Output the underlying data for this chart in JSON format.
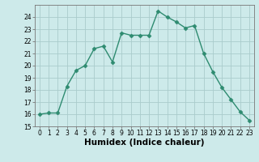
{
  "x": [
    0,
    1,
    2,
    3,
    4,
    5,
    6,
    7,
    8,
    9,
    10,
    11,
    12,
    13,
    14,
    15,
    16,
    17,
    18,
    19,
    20,
    21,
    22,
    23
  ],
  "y": [
    16.0,
    16.1,
    16.1,
    18.3,
    19.6,
    20.0,
    21.4,
    21.6,
    20.3,
    22.7,
    22.5,
    22.5,
    22.5,
    24.5,
    24.0,
    23.6,
    23.1,
    23.3,
    21.0,
    19.5,
    18.2,
    17.2,
    16.2,
    15.5
  ],
  "line_color": "#2e8b70",
  "marker": "D",
  "marker_size": 2.5,
  "bg_color": "#cdeaea",
  "grid_color": "#aacccc",
  "xlabel": "Humidex (Indice chaleur)",
  "ylim": [
    15,
    25
  ],
  "xlim": [
    -0.5,
    23.5
  ],
  "yticks": [
    15,
    16,
    17,
    18,
    19,
    20,
    21,
    22,
    23,
    24
  ],
  "xticks": [
    0,
    1,
    2,
    3,
    4,
    5,
    6,
    7,
    8,
    9,
    10,
    11,
    12,
    13,
    14,
    15,
    16,
    17,
    18,
    19,
    20,
    21,
    22,
    23
  ],
  "tick_fontsize": 5.5,
  "xlabel_fontsize": 7.5
}
